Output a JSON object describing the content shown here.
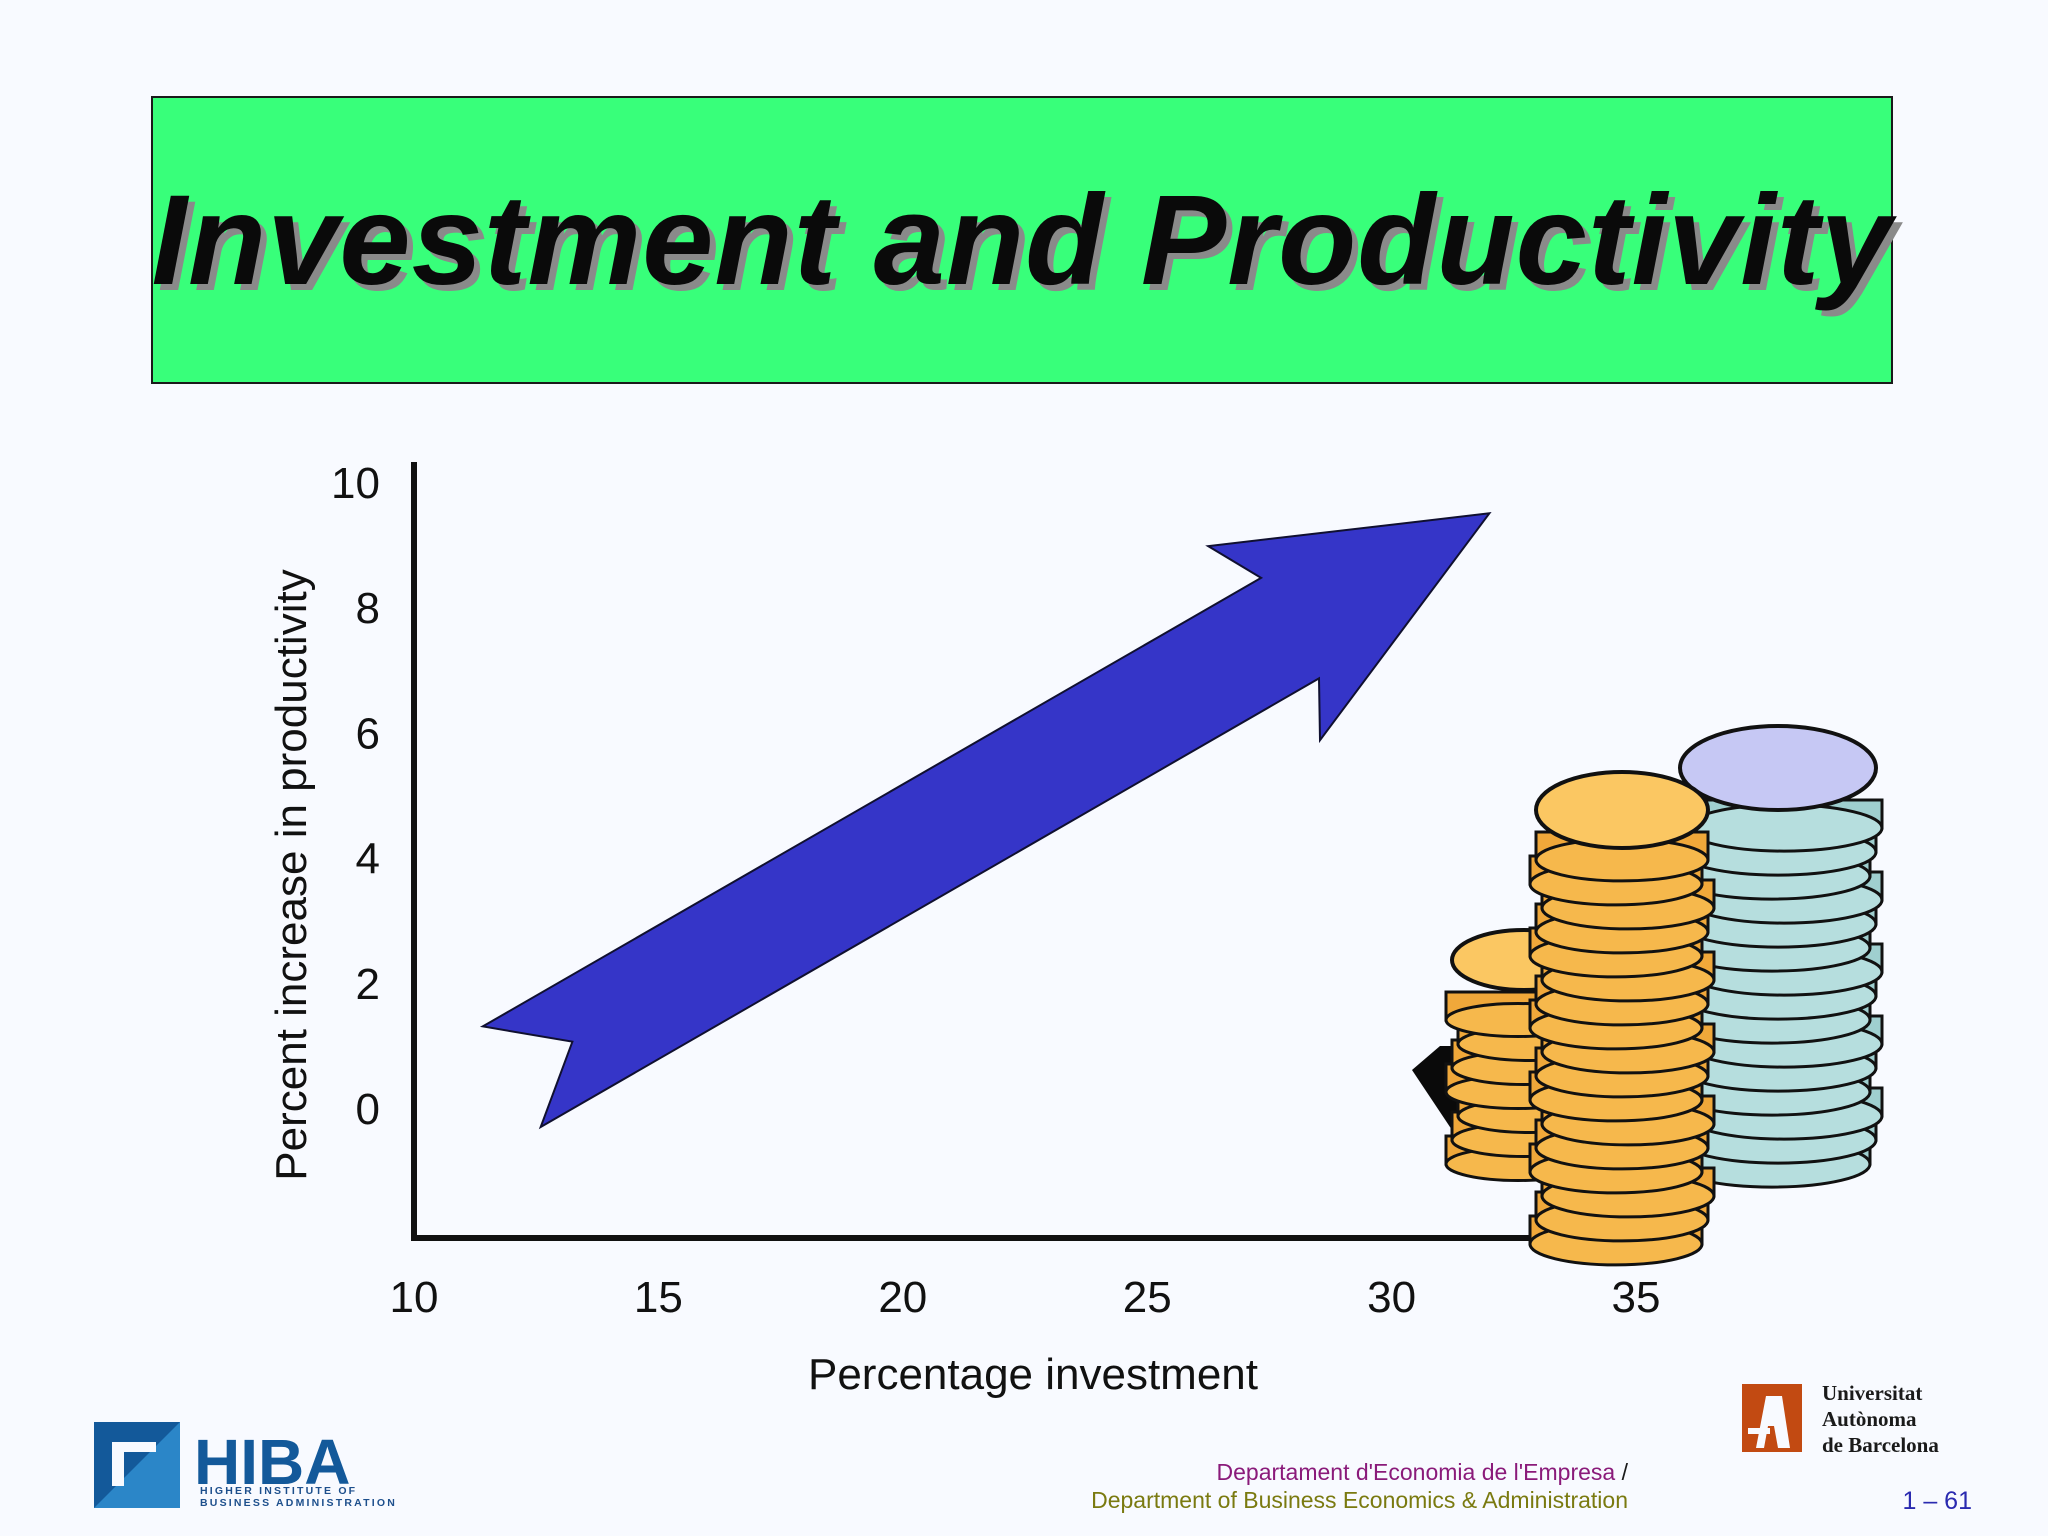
{
  "slide": {
    "title": "Investment and Productivity"
  },
  "chart_data": {
    "type": "line",
    "xlabel": "Percentage investment",
    "ylabel": "Percent increase in productivity",
    "x_ticks": [
      10,
      15,
      20,
      25,
      30,
      35
    ],
    "y_ticks": [
      0,
      2,
      4,
      6,
      8,
      10
    ],
    "xlim": [
      10,
      35
    ],
    "ylim": [
      0,
      10
    ],
    "series": [
      {
        "x": [
          12,
          32
        ],
        "y": [
          0.5,
          9.5
        ],
        "style": "arrow",
        "color": "#3535c8"
      }
    ],
    "grid": false,
    "legend": "none"
  },
  "footer": {
    "dept_catalan": "Departament d'Economia de l'Empresa",
    "slash": "/",
    "dept_english": "Department of Business Economics & Administration",
    "page_number": "1 – 61"
  },
  "logos": {
    "hiba_name": "HIBA",
    "hiba_line1": "HIGHER INSTITUTE OF",
    "hiba_line2": "BUSINESS ADMINISTRATION",
    "uab_line1": "Universitat",
    "uab_line2": "Autònoma",
    "uab_line3": "de Barcelona"
  },
  "colors": {
    "title_bg": "#38ff7a",
    "arrow": "#3535c8",
    "coin_gold": "#f4a93c",
    "coin_silver": "#a8d4d4"
  }
}
